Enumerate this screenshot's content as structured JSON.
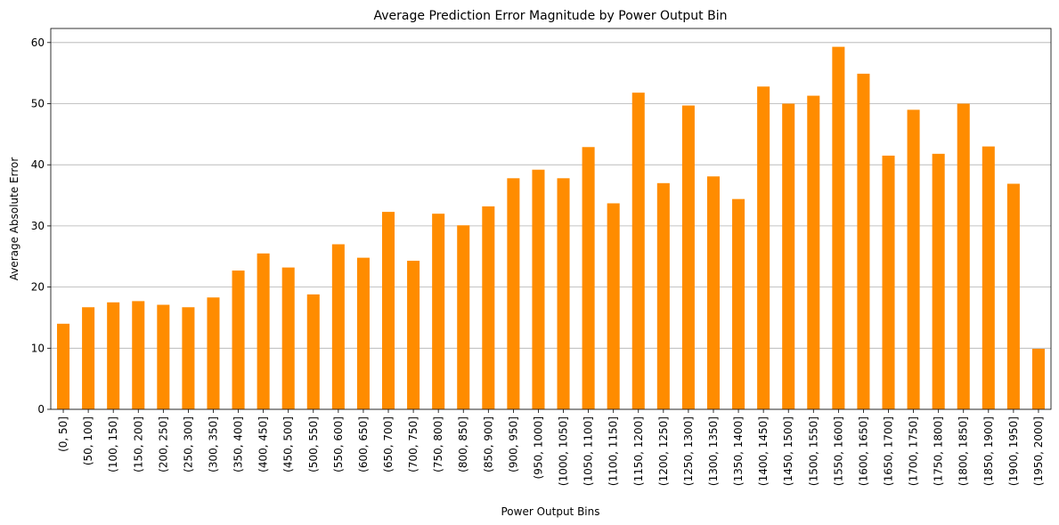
{
  "chart_data": {
    "type": "bar",
    "title": "Average Prediction Error Magnitude by Power Output Bin",
    "xlabel": "Power Output Bins",
    "ylabel": "Average Absolute Error",
    "ylim": [
      0,
      62.3
    ],
    "yticks": [
      0,
      10,
      20,
      30,
      40,
      50,
      60
    ],
    "grid": "y",
    "bar_color": "#ff8c00",
    "categories": [
      "(0, 50]",
      "(50, 100]",
      "(100, 150]",
      "(150, 200]",
      "(200, 250]",
      "(250, 300]",
      "(300, 350]",
      "(350, 400]",
      "(400, 450]",
      "(450, 500]",
      "(500, 550]",
      "(550, 600]",
      "(600, 650]",
      "(650, 700]",
      "(700, 750]",
      "(750, 800]",
      "(800, 850]",
      "(850, 900]",
      "(900, 950]",
      "(950, 1000]",
      "(1000, 1050]",
      "(1050, 1100]",
      "(1100, 1150]",
      "(1150, 1200]",
      "(1200, 1250]",
      "(1250, 1300]",
      "(1300, 1350]",
      "(1350, 1400]",
      "(1400, 1450]",
      "(1450, 1500]",
      "(1500, 1550]",
      "(1550, 1600]",
      "(1600, 1650]",
      "(1650, 1700]",
      "(1700, 1750]",
      "(1750, 1800]",
      "(1800, 1850]",
      "(1850, 1900]",
      "(1900, 1950]",
      "(1950, 2000]"
    ],
    "values": [
      14.0,
      16.7,
      17.5,
      17.7,
      17.1,
      16.7,
      18.3,
      22.7,
      25.5,
      23.2,
      18.8,
      27.0,
      24.8,
      32.3,
      24.3,
      32.0,
      30.1,
      33.2,
      37.8,
      39.2,
      37.8,
      42.9,
      33.7,
      51.8,
      37.0,
      49.7,
      38.1,
      34.4,
      52.8,
      50.0,
      51.3,
      59.3,
      54.9,
      41.5,
      49.0,
      41.8,
      50.0,
      43.0,
      36.9,
      9.9
    ]
  }
}
